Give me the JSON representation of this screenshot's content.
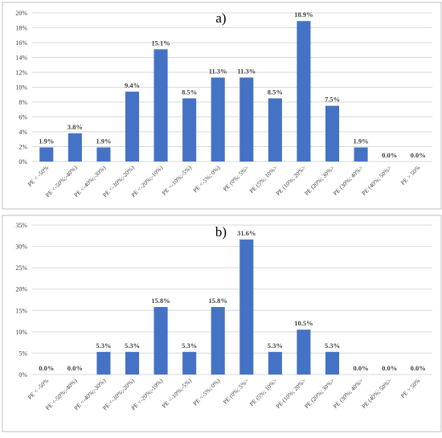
{
  "colors": {
    "bar": "#4472C4",
    "grid": "#d9d9d9",
    "frame": "#bfbfbf",
    "text": "#404040"
  },
  "chart_data": [
    {
      "type": "bar",
      "panel_label": "a)",
      "categories": [
        "PE < -50%",
        "PE <-50%;-40%)",
        "PE <-40%;-30%)",
        "PE <-30%;-20%)",
        "PE <-20%;-10%)",
        "PE <-10%;-5%)",
        "PE <-5%; 0%)",
        "PE (0%; 5%>",
        "PE (5%; 10%>",
        "PE (10%; 20%>",
        "PE (20%; 30%>",
        "PE (30%; 40%>",
        "PE (40%; 50%>",
        "PE > 50%"
      ],
      "values": [
        1.9,
        3.8,
        1.9,
        9.4,
        15.1,
        8.5,
        11.3,
        11.3,
        8.5,
        18.9,
        7.5,
        1.9,
        0.0,
        0.0
      ],
      "data_labels": [
        "1.9%",
        "3.8%",
        "1.9%",
        "9.4%",
        "15.1%",
        "8.5%",
        "11.3%",
        "11.3%",
        "8.5%",
        "18.9%",
        "7.5%",
        "1.9%",
        "0.0%",
        "0.0%"
      ],
      "ylim": [
        0,
        20
      ],
      "yticks": [
        0,
        2,
        4,
        6,
        8,
        10,
        12,
        14,
        16,
        18,
        20
      ],
      "ytick_labels": [
        "0%",
        "2%",
        "4%",
        "6%",
        "8%",
        "10%",
        "12%",
        "14%",
        "16%",
        "18%",
        "20%"
      ],
      "grid": true
    },
    {
      "type": "bar",
      "panel_label": "b)",
      "categories": [
        "PE < -50%",
        "PE <-50%;-40%)",
        "PE <-40%;-30%)",
        "PE <-30%;-20%)",
        "PE <-20%;-10%)",
        "PE <-10%;-5%)",
        "PE <-5%; 0%)",
        "PE (0%; 5%>",
        "PE (5%; 10%>",
        "PE (10%; 20%>",
        "PE (20%; 30%>",
        "PE (30%; 40%>",
        "PE (40%; 50%>",
        "PE > 50%"
      ],
      "values": [
        0.0,
        0.0,
        5.3,
        5.3,
        15.8,
        5.3,
        15.8,
        31.6,
        5.3,
        10.5,
        5.3,
        0.0,
        0.0,
        0.0
      ],
      "data_labels": [
        "0.0%",
        "0.0%",
        "5.3%",
        "5.3%",
        "15.8%",
        "5.3%",
        "15.8%",
        "31.6%",
        "5.3%",
        "10.5%",
        "5.3%",
        "0.0%",
        "0.0%",
        "0.0%"
      ],
      "ylim": [
        0,
        35
      ],
      "yticks": [
        0,
        5,
        10,
        15,
        20,
        25,
        30,
        35
      ],
      "ytick_labels": [
        "0%",
        "5%",
        "10%",
        "15%",
        "20%",
        "25%",
        "30%",
        "35%"
      ],
      "grid": true
    }
  ]
}
